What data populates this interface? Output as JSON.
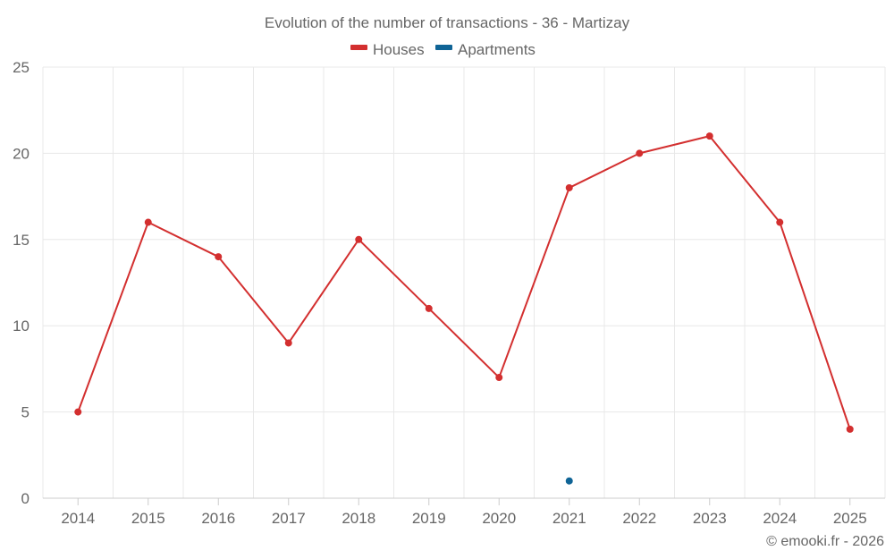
{
  "chart_data": {
    "type": "line",
    "title": "Evolution of the number of transactions - 36 - Martizay",
    "categories": [
      "2014",
      "2015",
      "2016",
      "2017",
      "2018",
      "2019",
      "2020",
      "2021",
      "2022",
      "2023",
      "2024",
      "2025"
    ],
    "series": [
      {
        "name": "Houses",
        "color": "#d32f2f",
        "values": [
          5,
          16,
          14,
          9,
          15,
          11,
          7,
          18,
          20,
          21,
          16,
          4
        ]
      },
      {
        "name": "Apartments",
        "color": "#0f6496",
        "values": [
          null,
          null,
          null,
          null,
          null,
          null,
          null,
          1,
          null,
          null,
          null,
          null
        ]
      }
    ],
    "ylim": [
      0,
      25
    ],
    "yticks": [
      0,
      5,
      10,
      15,
      20,
      25
    ],
    "xlabel": "",
    "ylabel": "",
    "grid": true,
    "legend": "top-center"
  },
  "credit": "© emooki.fr - 2026"
}
